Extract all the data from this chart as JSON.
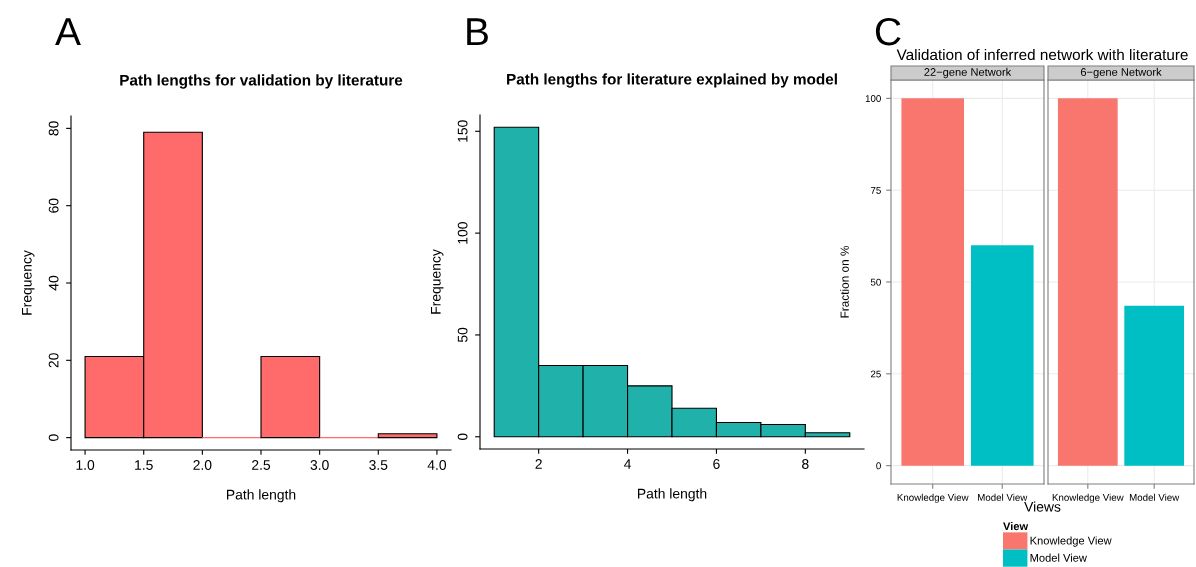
{
  "chart_data": [
    {
      "type": "histogram",
      "title": "Path lengths for validation by literature",
      "xlabel": "Path length",
      "ylabel": "Frequency",
      "annotations": [
        "A"
      ],
      "bins": [
        1.0,
        1.5,
        2.0,
        2.5,
        3.0,
        3.5,
        4.0
      ],
      "values": [
        21,
        79,
        0,
        21,
        0,
        1
      ],
      "color": "#ff6a6a",
      "xlim": [
        0.88,
        4.12
      ],
      "xticks": [
        {
          "value": 1.0,
          "label": "1.0"
        },
        {
          "value": 1.5,
          "label": "1.5"
        },
        {
          "value": 2.0,
          "label": "2.0"
        },
        {
          "value": 2.5,
          "label": "2.5"
        },
        {
          "value": 3.0,
          "label": "3.0"
        },
        {
          "value": 3.5,
          "label": "3.5"
        },
        {
          "value": 4.0,
          "label": "4.0"
        }
      ],
      "ylim": [
        -3.2,
        83.2
      ],
      "yticks": [
        0,
        20,
        40,
        60,
        80
      ]
    },
    {
      "type": "histogram",
      "title": "Path lengths for literature explained by model",
      "xlabel": "Path length",
      "ylabel": "Frequency",
      "annotations": [
        "B"
      ],
      "bins": [
        1,
        2,
        3,
        4,
        5,
        6,
        7,
        8,
        9
      ],
      "values": [
        152,
        35,
        35,
        25,
        14,
        7,
        6,
        2
      ],
      "color": "#20b2aa",
      "xlim": [
        0.68,
        9.32
      ],
      "xticks": [
        2,
        4,
        6,
        8
      ],
      "ylim": [
        -6,
        158
      ],
      "yticks": [
        0,
        50,
        100,
        150
      ]
    },
    {
      "type": "bar",
      "title": "Validation of inferred network with literature",
      "subtitle": "22−gene Network",
      "xlabel": "Views",
      "ylabel": "Fraction on %",
      "annotations": [
        "C"
      ],
      "categories": [
        "Knowledge View",
        "Model View"
      ],
      "series": [
        {
          "name": "Knowledge View",
          "color": "#f8766d",
          "values": [
            100,
            null
          ]
        },
        {
          "name": "Model View",
          "color": "#00bfc4",
          "values": [
            null,
            60
          ]
        }
      ],
      "ylim": [
        -5,
        105
      ],
      "yticks": [
        0,
        25,
        50,
        75,
        100
      ],
      "grid": true,
      "legend": "bottom",
      "legend_title": "View"
    },
    {
      "type": "bar",
      "subtitle": "6−gene Network",
      "categories": [
        "Knowledge View",
        "Model View"
      ],
      "series": [
        {
          "color": "#f8766d",
          "values": [
            100,
            null
          ]
        },
        {
          "color": "#00bfc4",
          "values": [
            null,
            43.5
          ]
        }
      ],
      "ylim": [
        -5,
        105
      ],
      "yticks": [
        0,
        25,
        50,
        75,
        100
      ],
      "grid": true,
      "tick_labels": "x"
    }
  ]
}
